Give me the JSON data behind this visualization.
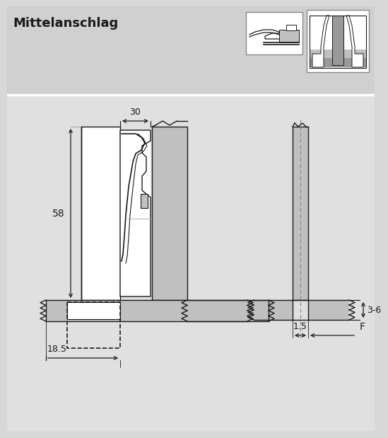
{
  "title": "Mittelanschlag",
  "bg_color": "#d8d8d8",
  "lgray": "#c0c0c0",
  "mgray": "#999999",
  "white": "#ffffff",
  "black": "#1a1a1a",
  "dim30": "30",
  "dim58": "58",
  "dim18_5": "18.5",
  "dim3_6": "3-6",
  "dim1_5": "1.5",
  "dimF": "F"
}
